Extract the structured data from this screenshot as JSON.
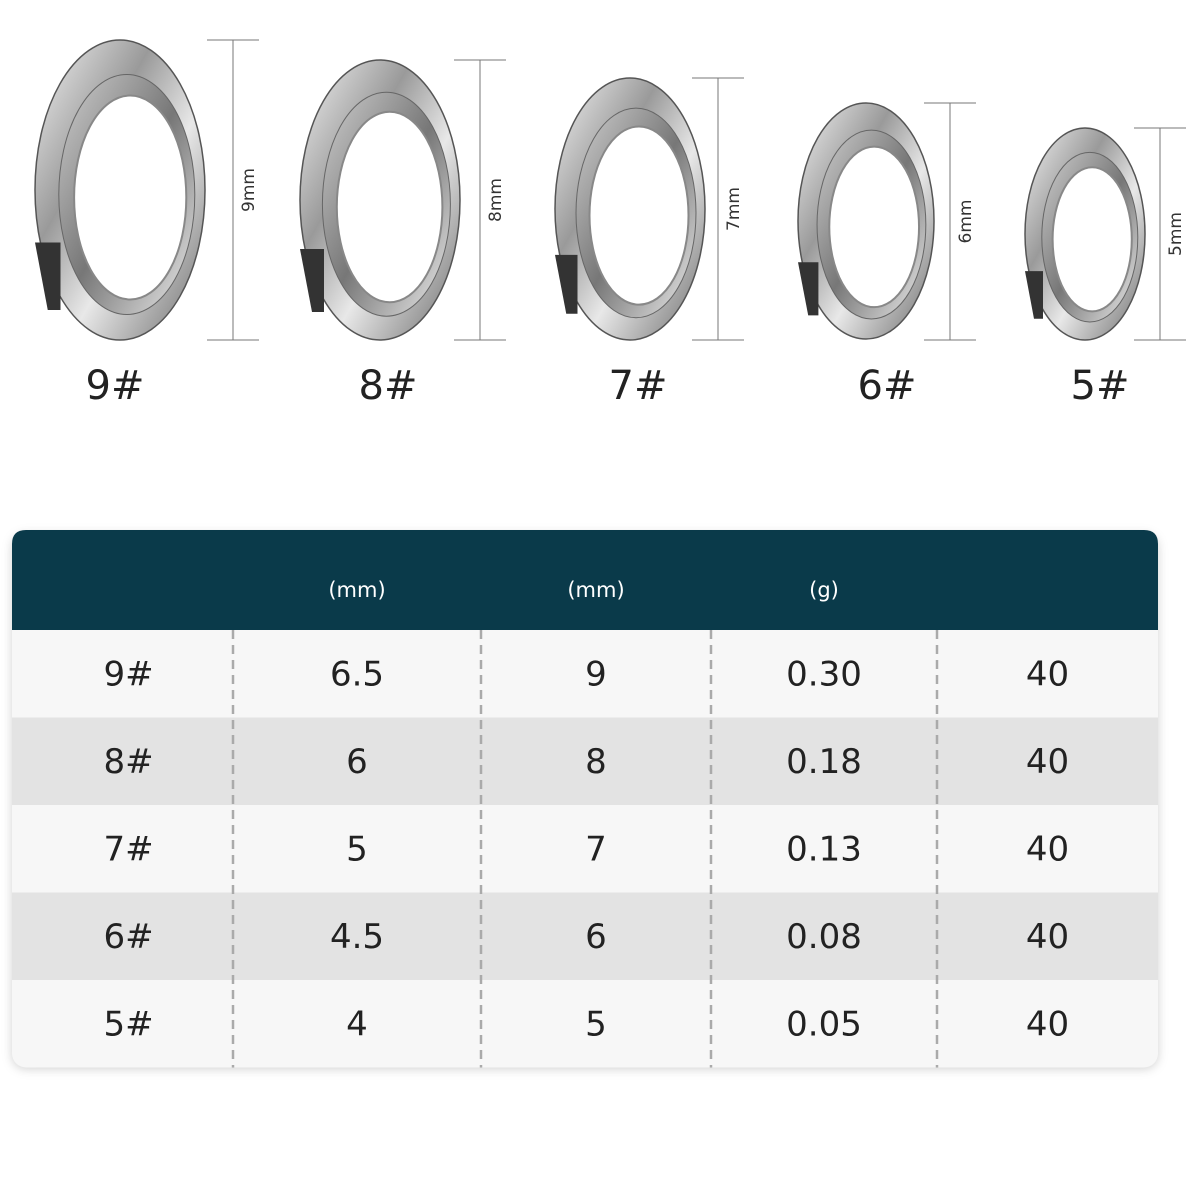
{
  "rings": [
    {
      "label": "9#",
      "dimension": "9mm"
    },
    {
      "label": "8#",
      "dimension": "8mm"
    },
    {
      "label": "7#",
      "dimension": "7mm"
    },
    {
      "label": "6#",
      "dimension": "6mm"
    },
    {
      "label": "5#",
      "dimension": "5mm"
    }
  ],
  "table": {
    "header": [
      "(mm)",
      "(mm)",
      "(g)"
    ],
    "rows": [
      [
        "9#",
        "6.5",
        "9",
        "0.30",
        "40"
      ],
      [
        "8#",
        "6",
        "8",
        "0.18",
        "40"
      ],
      [
        "7#",
        "5",
        "7",
        "0.13",
        "40"
      ],
      [
        "6#",
        "4.5",
        "6",
        "0.08",
        "40"
      ],
      [
        "5#",
        "4",
        "5",
        "0.05",
        "40"
      ]
    ]
  }
}
